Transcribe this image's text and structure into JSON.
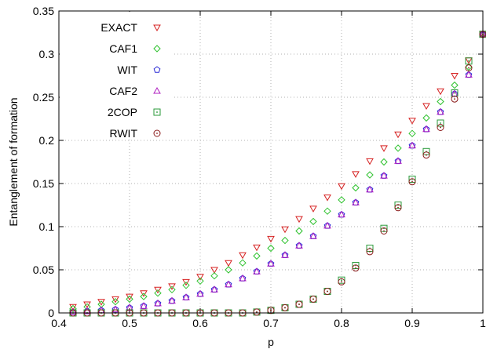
{
  "chart_data": {
    "type": "scatter",
    "title": "",
    "xlabel": "p",
    "ylabel": "Entanglement of formation",
    "xlim": [
      0.4,
      1.0
    ],
    "ylim": [
      0,
      0.35
    ],
    "xticks": [
      0.4,
      0.5,
      0.6,
      0.7,
      0.8,
      0.9,
      1.0
    ],
    "xtick_labels": [
      "0.4",
      "0.5",
      "0.6",
      "0.7",
      "0.8",
      "0.9",
      "1"
    ],
    "yticks": [
      0,
      0.05,
      0.1,
      0.15,
      0.2,
      0.25,
      0.3,
      0.35
    ],
    "ytick_labels": [
      "0",
      "0.05",
      "0.1",
      "0.15",
      "0.2",
      "0.25",
      "0.3",
      "0.35"
    ],
    "grid": true,
    "legend_position": "top-left",
    "x": [
      0.42,
      0.44,
      0.46,
      0.48,
      0.5,
      0.52,
      0.54,
      0.56,
      0.58,
      0.6,
      0.62,
      0.64,
      0.66,
      0.68,
      0.7,
      0.72,
      0.74,
      0.76,
      0.78,
      0.8,
      0.82,
      0.84,
      0.86,
      0.88,
      0.9,
      0.92,
      0.94,
      0.96,
      0.98,
      1.0
    ],
    "series": [
      {
        "name": "EXACT",
        "marker": "triangle-down",
        "color": "#d62020",
        "values": [
          0.007,
          0.01,
          0.013,
          0.016,
          0.019,
          0.023,
          0.027,
          0.031,
          0.036,
          0.042,
          0.05,
          0.058,
          0.067,
          0.076,
          0.086,
          0.097,
          0.109,
          0.121,
          0.134,
          0.147,
          0.161,
          0.176,
          0.191,
          0.207,
          0.223,
          0.24,
          0.257,
          0.275,
          0.293,
          0.323
        ]
      },
      {
        "name": "CAF1",
        "marker": "diamond",
        "color": "#2ec22e",
        "values": [
          0.005,
          0.007,
          0.01,
          0.013,
          0.016,
          0.019,
          0.023,
          0.027,
          0.032,
          0.037,
          0.043,
          0.05,
          0.058,
          0.066,
          0.075,
          0.084,
          0.095,
          0.106,
          0.118,
          0.131,
          0.145,
          0.16,
          0.175,
          0.191,
          0.208,
          0.226,
          0.245,
          0.264,
          0.285,
          0.323
        ]
      },
      {
        "name": "WIT",
        "marker": "pentagon",
        "color": "#2a2ad6",
        "values": [
          0.001,
          0.002,
          0.003,
          0.004,
          0.006,
          0.008,
          0.011,
          0.014,
          0.018,
          0.022,
          0.027,
          0.033,
          0.04,
          0.048,
          0.057,
          0.067,
          0.078,
          0.089,
          0.101,
          0.114,
          0.128,
          0.143,
          0.159,
          0.176,
          0.194,
          0.213,
          0.233,
          0.254,
          0.276,
          0.323
        ]
      },
      {
        "name": "CAF2",
        "marker": "triangle-up",
        "color": "#b020c0",
        "values": [
          0.001,
          0.002,
          0.003,
          0.004,
          0.006,
          0.008,
          0.011,
          0.014,
          0.018,
          0.022,
          0.027,
          0.033,
          0.04,
          0.048,
          0.057,
          0.067,
          0.078,
          0.089,
          0.101,
          0.114,
          0.128,
          0.143,
          0.159,
          0.176,
          0.194,
          0.213,
          0.233,
          0.254,
          0.276,
          0.323
        ]
      },
      {
        "name": "2COP",
        "marker": "square",
        "color": "#2a9a3a",
        "values": [
          0,
          0,
          0,
          0,
          0,
          0,
          0,
          0,
          0,
          0,
          0,
          0,
          0,
          0.001,
          0.003,
          0.006,
          0.01,
          0.016,
          0.025,
          0.038,
          0.055,
          0.075,
          0.098,
          0.125,
          0.155,
          0.187,
          0.22,
          0.255,
          0.292,
          0.323
        ]
      },
      {
        "name": "RWIT",
        "marker": "circle",
        "color": "#8b1a1a",
        "values": [
          0,
          0,
          0,
          0,
          0,
          0,
          0,
          0,
          0,
          0,
          0,
          0,
          0,
          0.001,
          0.003,
          0.006,
          0.01,
          0.016,
          0.025,
          0.036,
          0.052,
          0.071,
          0.095,
          0.122,
          0.152,
          0.183,
          0.215,
          0.248,
          0.284,
          0.323
        ]
      }
    ]
  }
}
